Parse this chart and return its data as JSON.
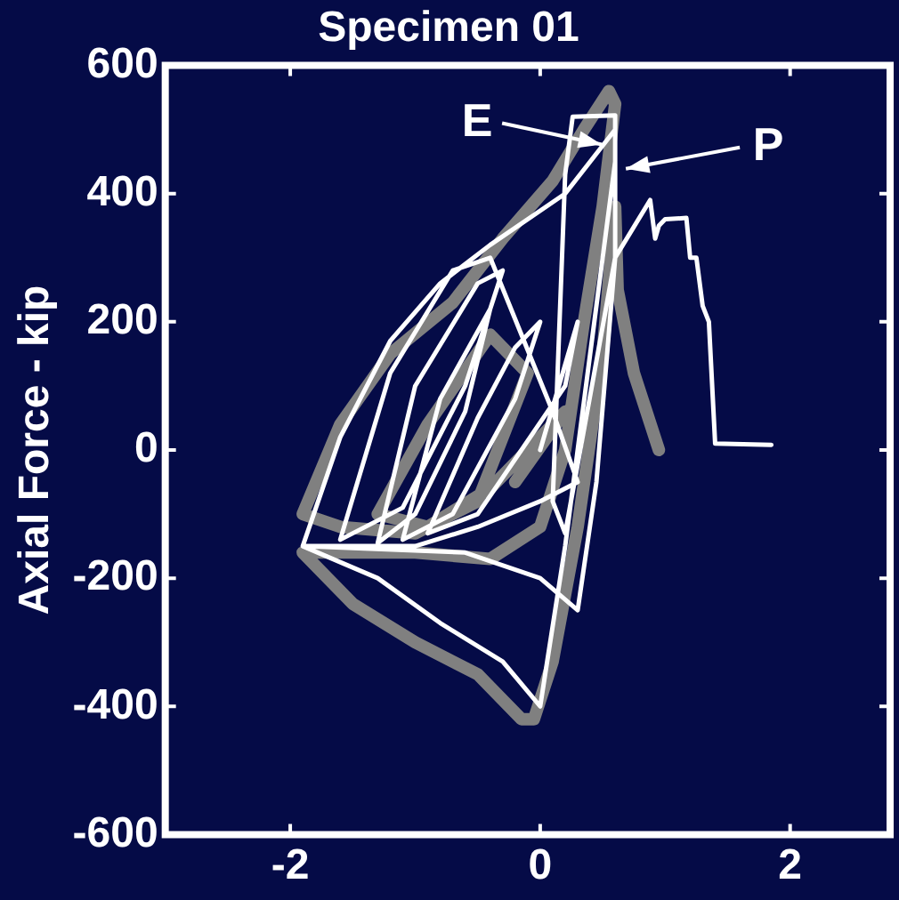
{
  "chart_data": {
    "type": "line",
    "title": "Specimen 01",
    "ylabel": "Axial Force - kip",
    "xlim": [
      -3,
      2.8
    ],
    "ylim": [
      -600,
      600
    ],
    "xticks": [
      -2,
      0,
      2
    ],
    "yticks": [
      -600,
      -400,
      -200,
      0,
      200,
      400,
      600
    ],
    "grid": false,
    "legend": "top right",
    "marker": "none",
    "line_style": "solid",
    "series": [
      {
        "name": "E",
        "color": "#808080",
        "x": [
          -0.2,
          0.2,
          -0.4,
          -0.9,
          -1.3,
          -0.9,
          -0.4,
          -0.1,
          -0.5,
          -1.0,
          -1.6,
          -1.9,
          -1.6,
          -1.2,
          -0.7,
          -0.3,
          0.1,
          0.35,
          0.55,
          0.6,
          0.5,
          0.35,
          0.2,
          0.0,
          -0.4,
          -1.0,
          -1.9,
          -1.5,
          -1.0,
          -0.5,
          -0.15,
          -0.05,
          0.1,
          0.3,
          0.5,
          0.6,
          0.62,
          0.75,
          0.95
        ],
        "values": [
          -50,
          60,
          -60,
          -120,
          -100,
          40,
          180,
          120,
          -80,
          -130,
          -120,
          -100,
          40,
          150,
          230,
          330,
          420,
          500,
          560,
          540,
          380,
          200,
          0,
          -120,
          -170,
          -160,
          -160,
          -240,
          -300,
          -350,
          -420,
          -420,
          -330,
          -120,
          150,
          380,
          250,
          120,
          0
        ]
      },
      {
        "name": "P",
        "color": "#ffffff",
        "x": [
          0,
          0.3,
          0.2,
          -0.5,
          -0.9,
          -0.5,
          -0.2,
          0,
          -0.2,
          -0.7,
          -1.1,
          -0.8,
          -0.4,
          -0.6,
          -1.0,
          -1.3,
          -1.0,
          -0.5,
          -0.3,
          -0.6,
          -1.1,
          -1.6,
          -1.2,
          -0.7,
          -0.4,
          0.1,
          0.3,
          0.0,
          -0.5,
          -1.0,
          -1.9,
          -1.6,
          -1.2,
          -0.8,
          -0.4,
          0.2,
          0.6,
          0.6,
          0.45,
          0.3,
          0.0,
          -0.6,
          -1.9,
          -1.3,
          -0.8,
          -0.3,
          0,
          0.2,
          0.4,
          0.6,
          0.6,
          0.26,
          0.2,
          0.1,
          0.2,
          0.6,
          0.88,
          0.92,
          0.95,
          1.0,
          1.17,
          1.2,
          1.25,
          1.3,
          1.35,
          1.4,
          1.85
        ],
        "values": [
          0,
          200,
          100,
          -100,
          -130,
          50,
          160,
          200,
          80,
          -100,
          -140,
          80,
          220,
          60,
          -100,
          -145,
          100,
          260,
          280,
          100,
          -90,
          -140,
          120,
          280,
          300,
          60,
          -50,
          -80,
          -120,
          -150,
          -150,
          20,
          170,
          260,
          320,
          400,
          500,
          300,
          -50,
          -250,
          -200,
          -160,
          -150,
          -200,
          -270,
          -330,
          -400,
          -150,
          150,
          450,
          522,
          520,
          430,
          -80,
          -130,
          300,
          390,
          330,
          350,
          360,
          362,
          300,
          300,
          225,
          200,
          10,
          8
        ]
      }
    ]
  }
}
